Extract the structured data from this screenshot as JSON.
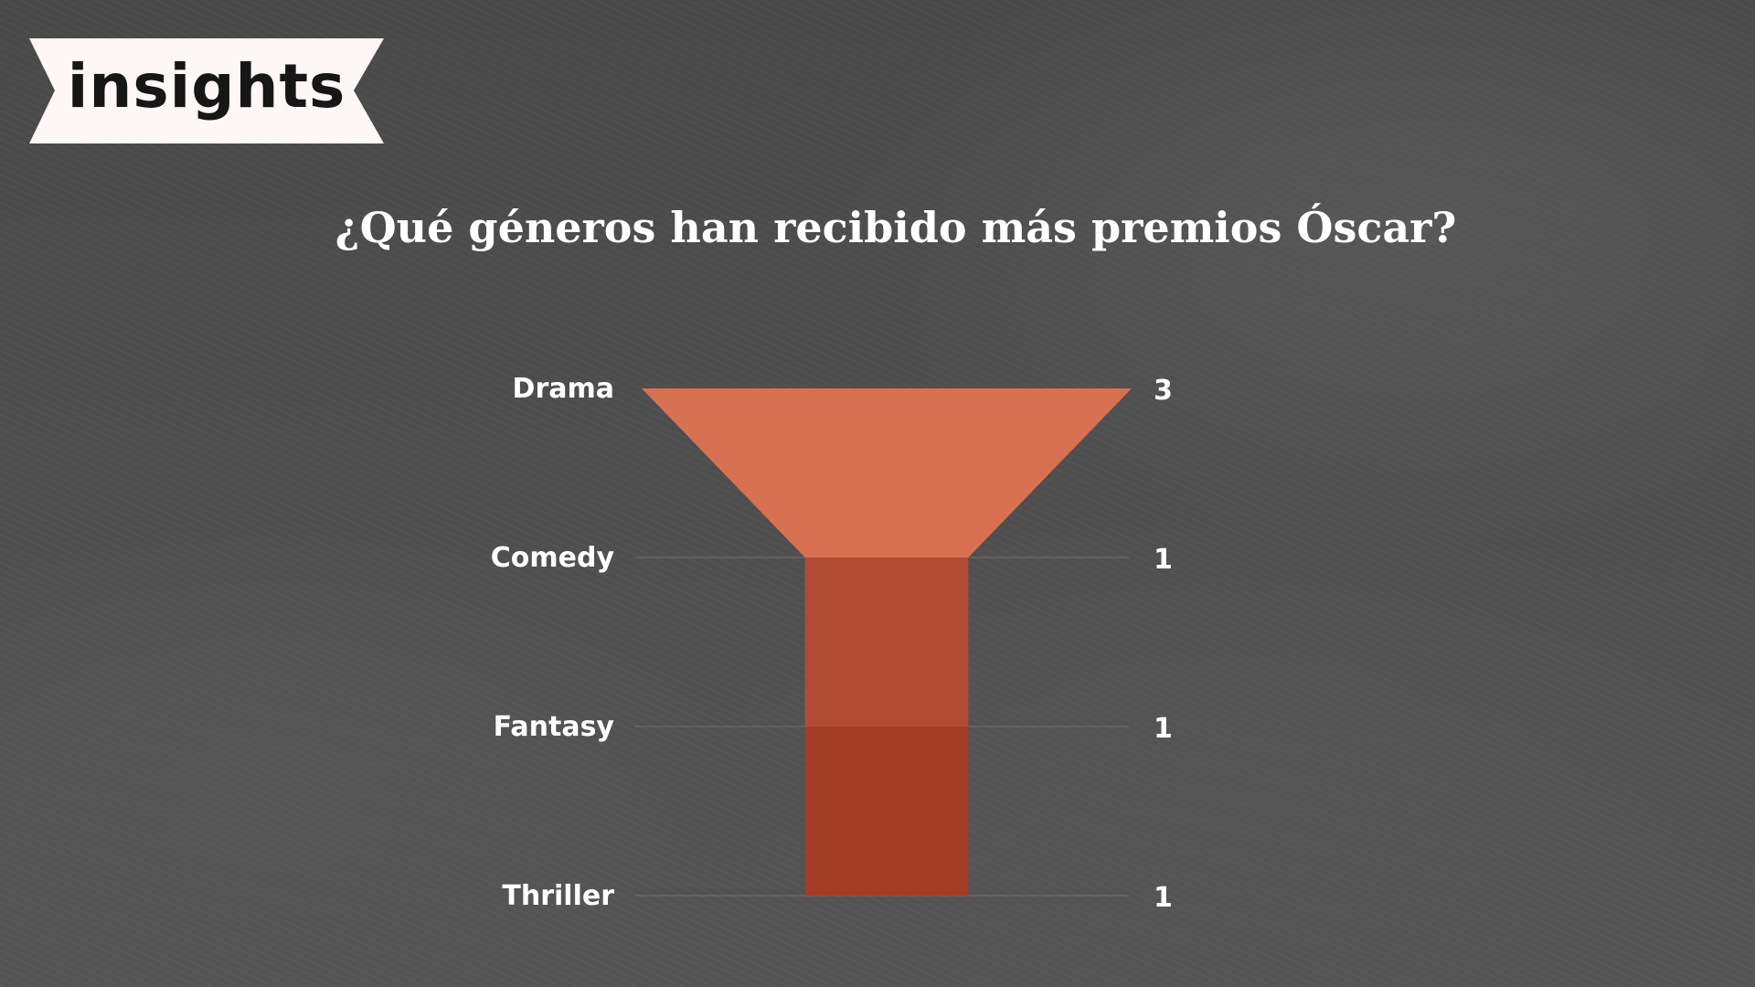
{
  "brand": {
    "logo_text": "insights",
    "ribbon_color": "#fdf7f6"
  },
  "chart_data": {
    "type": "funnel",
    "title": "¿Qué géneros han recibido más premios Óscar?",
    "categories": [
      "Drama",
      "Comedy",
      "Fantasy",
      "Thriller"
    ],
    "values": [
      3,
      1,
      1,
      1
    ],
    "colors": [
      "#d87052",
      "#b24b33",
      "#a43d26",
      "#a43d26"
    ],
    "label_color": "#ffffff"
  }
}
